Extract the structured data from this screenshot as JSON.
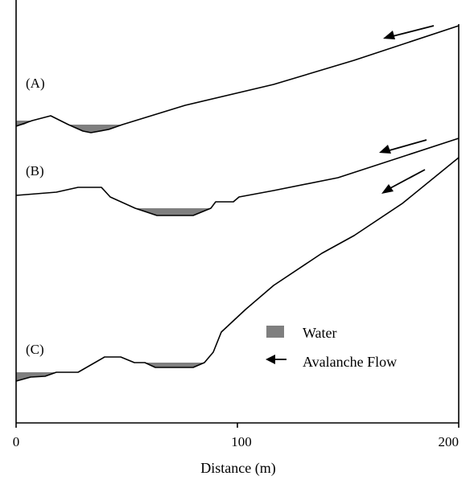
{
  "figure": {
    "panels": [
      {
        "id": "A",
        "label": "(A)"
      },
      {
        "id": "B",
        "label": "(B)"
      },
      {
        "id": "C",
        "label": "(C)"
      }
    ],
    "x_axis": {
      "title": "Distance (m)",
      "ticks": [
        "0",
        "100",
        "200"
      ]
    },
    "legend": {
      "water": "Water",
      "flow": "Avalanche Flow"
    },
    "colors": {
      "water": "#7f7f7f",
      "line": "#000000"
    },
    "icons": {
      "flow": "arrow-left-icon",
      "water": "gray-square-swatch"
    }
  }
}
